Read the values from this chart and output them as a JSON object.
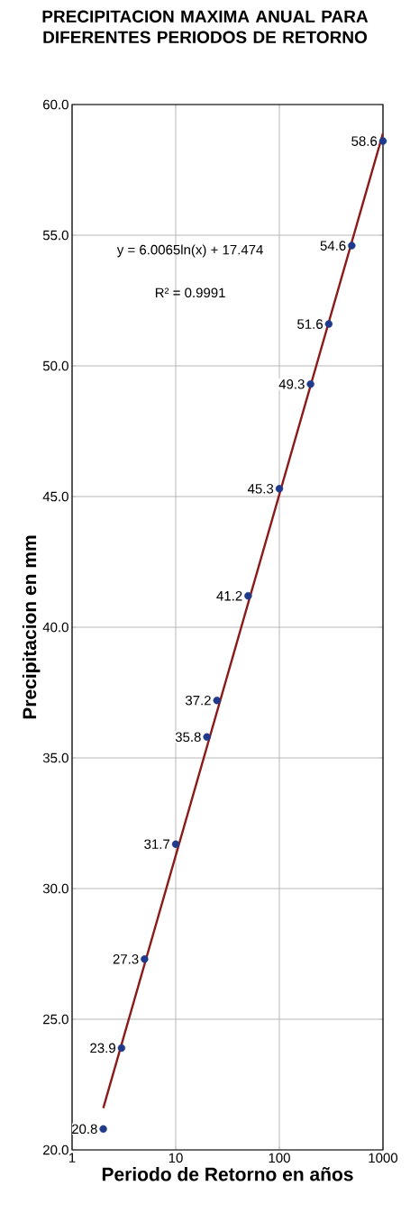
{
  "chart_data": {
    "type": "scatter",
    "title": "PRECIPITACION MAXIMA ANUAL PARA DIFERENTES PERIODOS DE RETORNO",
    "xlabel": "Periodo de Retorno en años",
    "ylabel": "Precipitacion en mm",
    "annotations": [
      "y = 6.0065ln(x) + 17.474",
      "R² = 0.9991"
    ],
    "series": [
      {
        "type": "line",
        "color": "#8b1a1a",
        "marker": "none",
        "x": [
          2,
          1000
        ],
        "values": [
          21.6,
          58.9
        ]
      },
      {
        "type": "scatter",
        "color": "#1f3a8a",
        "marker": "circle",
        "data_labels": true,
        "x": [
          2,
          3,
          5,
          10,
          20,
          25,
          50,
          100,
          200,
          300,
          500,
          1000
        ],
        "values": [
          20.8,
          23.9,
          27.3,
          31.7,
          35.8,
          37.2,
          41.2,
          45.3,
          49.3,
          51.6,
          54.6,
          58.6
        ]
      }
    ],
    "log": "x",
    "xlim": [
      1,
      1000
    ],
    "xticks": [
      1,
      10,
      100,
      1000
    ],
    "ylim": [
      20,
      60
    ],
    "yticks": [
      {
        "value": 20,
        "label": "20.0"
      },
      {
        "value": 25,
        "label": "25.0"
      },
      {
        "value": 30,
        "label": "30.0"
      },
      {
        "value": 35,
        "label": "35.0"
      },
      {
        "value": 40,
        "label": "40.0"
      },
      {
        "value": 45,
        "label": "45.0"
      },
      {
        "value": 50,
        "label": "50.0"
      },
      {
        "value": 55,
        "label": "55.0"
      },
      {
        "value": 60,
        "label": "60.0"
      }
    ],
    "grid": true
  }
}
